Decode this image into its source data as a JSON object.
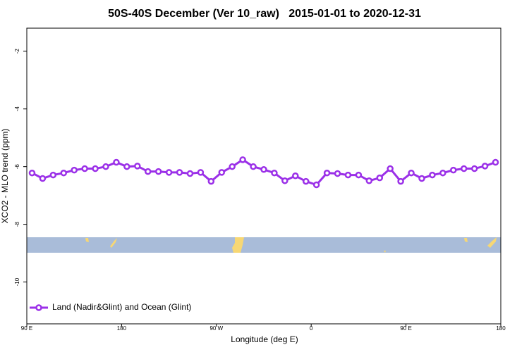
{
  "chart_data": {
    "type": "line",
    "title": "50S-40S December (Ver 10_raw)   2015-01-01 to 2020-12-31",
    "x_label": "Longitude (deg E)",
    "y_label": "XCO2 - MLO trend (ppm)",
    "x": [
      95,
      105,
      115,
      125,
      135,
      145,
      155,
      165,
      175,
      185,
      195,
      205,
      215,
      225,
      235,
      245,
      255,
      265,
      275,
      285,
      295,
      305,
      315,
      325,
      335,
      345,
      355,
      365,
      375,
      385,
      395,
      405,
      415,
      425,
      435,
      445,
      455,
      465,
      475,
      485,
      495,
      505,
      515,
      525,
      535
    ],
    "series": [
      {
        "name": "Land (Nadir&Glint) and Ocean (Glint)",
        "color": "#9b30e8",
        "values": [
          -6.22,
          -6.41,
          -6.29,
          -6.22,
          -6.12,
          -6.07,
          -6.07,
          -6.0,
          -5.85,
          -6.0,
          -5.98,
          -6.17,
          -6.17,
          -6.2,
          -6.2,
          -6.24,
          -6.2,
          -6.51,
          -6.2,
          -6.0,
          -5.76,
          -6.0,
          -6.1,
          -6.22,
          -6.49,
          -6.32,
          -6.51,
          -6.63,
          -6.22,
          -6.24,
          -6.29,
          -6.29,
          -6.49,
          -6.39,
          -6.07,
          -6.51,
          -6.22,
          -6.41,
          -6.29,
          -6.22,
          -6.12,
          -6.07,
          -6.07,
          -5.98,
          -5.85
        ]
      }
    ],
    "xlim": [
      90,
      540
    ],
    "xticks": [
      {
        "value": 90,
        "label": "90 E"
      },
      {
        "value": 180,
        "label": "180"
      },
      {
        "value": 270,
        "label": "90 W"
      },
      {
        "value": 360,
        "label": "0"
      },
      {
        "value": 450,
        "label": "90 E"
      },
      {
        "value": 540,
        "label": "180"
      }
    ],
    "ylim": [
      -11.45,
      -1.2
    ],
    "yticks": [
      -2,
      -4,
      -6,
      -8,
      -10
    ],
    "legend": "bottom-left"
  }
}
